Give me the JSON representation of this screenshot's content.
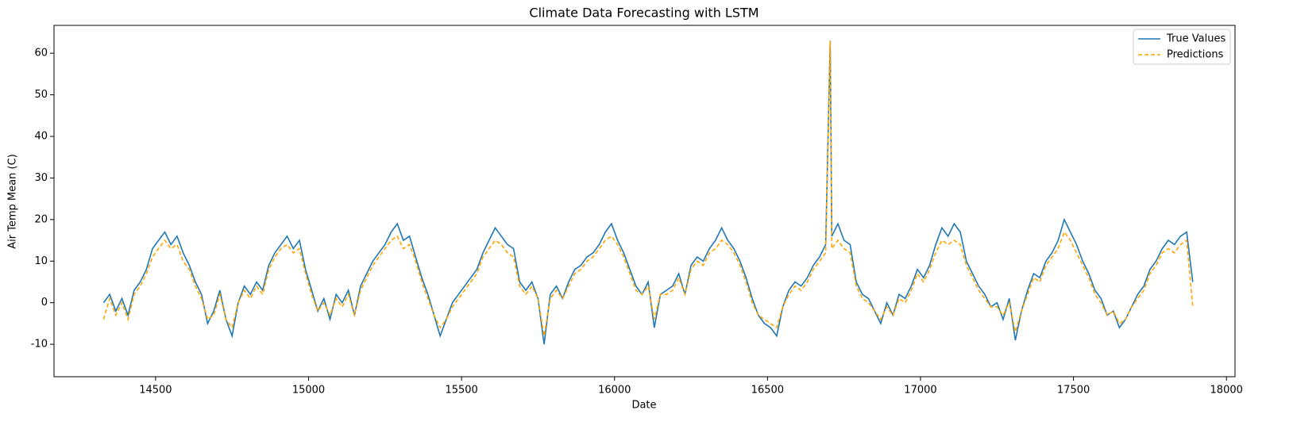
{
  "chart_data": {
    "type": "line",
    "title": "Climate Data Forecasting with LSTM",
    "x_label": "Date",
    "y_label": "Air Temp Mean (C)",
    "x": [
      14330,
      14350,
      14370,
      14390,
      14410,
      14430,
      14450,
      14470,
      14490,
      14510,
      14530,
      14550,
      14570,
      14590,
      14610,
      14630,
      14650,
      14670,
      14690,
      14710,
      14730,
      14750,
      14770,
      14790,
      14810,
      14830,
      14850,
      14870,
      14890,
      14910,
      14930,
      14950,
      14970,
      14990,
      15010,
      15030,
      15050,
      15070,
      15090,
      15110,
      15130,
      15150,
      15170,
      15190,
      15210,
      15230,
      15250,
      15270,
      15290,
      15310,
      15330,
      15350,
      15370,
      15390,
      15410,
      15430,
      15450,
      15470,
      15490,
      15510,
      15530,
      15550,
      15570,
      15590,
      15610,
      15630,
      15650,
      15670,
      15690,
      15710,
      15730,
      15750,
      15770,
      15790,
      15810,
      15830,
      15850,
      15870,
      15890,
      15910,
      15930,
      15950,
      15970,
      15990,
      16010,
      16030,
      16050,
      16070,
      16090,
      16110,
      16130,
      16150,
      16170,
      16190,
      16210,
      16230,
      16250,
      16270,
      16290,
      16310,
      16330,
      16350,
      16370,
      16390,
      16410,
      16430,
      16450,
      16470,
      16490,
      16510,
      16530,
      16550,
      16570,
      16590,
      16610,
      16630,
      16650,
      16670,
      16690,
      16705,
      16710,
      16730,
      16750,
      16770,
      16790,
      16810,
      16830,
      16850,
      16870,
      16890,
      16910,
      16930,
      16950,
      16970,
      16990,
      17010,
      17030,
      17050,
      17070,
      17090,
      17110,
      17130,
      17150,
      17170,
      17190,
      17210,
      17230,
      17250,
      17270,
      17290,
      17310,
      17330,
      17350,
      17370,
      17390,
      17410,
      17430,
      17450,
      17470,
      17490,
      17510,
      17530,
      17550,
      17570,
      17590,
      17610,
      17630,
      17650,
      17670,
      17690,
      17710,
      17730,
      17750,
      17770,
      17790,
      17810,
      17830,
      17850,
      17870,
      17890
    ],
    "series": [
      {
        "name": "True Values",
        "color": "#1f77b4",
        "dashed": false,
        "values": [
          0,
          2,
          -2,
          1,
          -3,
          3,
          5,
          8,
          13,
          15,
          17,
          14,
          16,
          12,
          9,
          5,
          2,
          -5,
          -2,
          3,
          -4,
          -8,
          0,
          4,
          2,
          5,
          3,
          9,
          12,
          14,
          16,
          13,
          15,
          8,
          3,
          -2,
          1,
          -4,
          2,
          0,
          3,
          -3,
          4,
          7,
          10,
          12,
          14,
          17,
          19,
          15,
          16,
          11,
          6,
          2,
          -3,
          -8,
          -4,
          0,
          2,
          4,
          6,
          8,
          12,
          15,
          18,
          16,
          14,
          13,
          5,
          3,
          5,
          1,
          -10,
          2,
          4,
          1,
          5,
          8,
          9,
          11,
          12,
          14,
          17,
          19,
          15,
          12,
          8,
          4,
          2,
          5,
          -6,
          2,
          3,
          4,
          7,
          2,
          9,
          11,
          10,
          13,
          15,
          18,
          15,
          13,
          10,
          6,
          1,
          -3,
          -5,
          -6,
          -8,
          -1,
          3,
          5,
          4,
          6,
          9,
          11,
          14,
          63,
          16,
          19,
          15,
          14,
          5,
          2,
          1,
          -2,
          -5,
          0,
          -3,
          2,
          1,
          4,
          8,
          6,
          9,
          14,
          18,
          16,
          19,
          17,
          10,
          7,
          4,
          2,
          -1,
          0,
          -4,
          1,
          -9,
          -2,
          3,
          7,
          6,
          10,
          12,
          15,
          20,
          17,
          14,
          10,
          7,
          3,
          1,
          -3,
          -2,
          -6,
          -4,
          -1,
          2,
          4,
          8,
          10,
          13,
          15,
          14,
          16,
          17,
          5
        ]
      },
      {
        "name": "Predictions",
        "color": "#ffa500",
        "dashed": true,
        "values": [
          -4,
          1,
          -3,
          0,
          -4,
          2,
          4,
          7,
          11,
          13,
          15,
          13,
          14,
          10,
          8,
          4,
          1,
          -4,
          -3,
          2,
          -4,
          -6,
          0,
          3,
          1,
          4,
          2,
          8,
          11,
          13,
          14,
          12,
          13,
          7,
          2,
          -2,
          0,
          -3,
          1,
          -1,
          2,
          -3,
          3,
          6,
          9,
          11,
          13,
          15,
          16,
          13,
          14,
          10,
          5,
          1,
          -3,
          -6,
          -4,
          -1,
          1,
          3,
          5,
          7,
          11,
          13,
          15,
          14,
          12,
          11,
          4,
          2,
          4,
          1,
          -8,
          1,
          3,
          1,
          4,
          7,
          8,
          10,
          11,
          13,
          15,
          16,
          14,
          11,
          7,
          3,
          2,
          4,
          -4,
          2,
          2,
          3,
          6,
          2,
          8,
          10,
          9,
          12,
          13,
          15,
          14,
          12,
          9,
          5,
          0,
          -3,
          -4,
          -5,
          -6,
          -1,
          2,
          4,
          3,
          5,
          8,
          10,
          12,
          63,
          13,
          15,
          13,
          12,
          4,
          1,
          0,
          -2,
          -4,
          -1,
          -3,
          1,
          0,
          3,
          7,
          5,
          8,
          12,
          15,
          14,
          15,
          14,
          9,
          6,
          3,
          1,
          -1,
          -1,
          -3,
          0,
          -7,
          -2,
          2,
          6,
          5,
          9,
          11,
          13,
          17,
          15,
          12,
          9,
          6,
          2,
          0,
          -3,
          -2,
          -5,
          -4,
          -1,
          1,
          3,
          7,
          9,
          12,
          13,
          12,
          14,
          15,
          -1
        ]
      }
    ],
    "xlim": [
      14168,
      18028
    ],
    "ylim": [
      -17.8,
      66.7
    ],
    "xticks": [
      14500,
      15000,
      15500,
      16000,
      16500,
      17000,
      17500,
      18000
    ],
    "yticks": [
      -10,
      0,
      10,
      20,
      30,
      40,
      50,
      60
    ],
    "legend": "upper right",
    "grid": false
  }
}
